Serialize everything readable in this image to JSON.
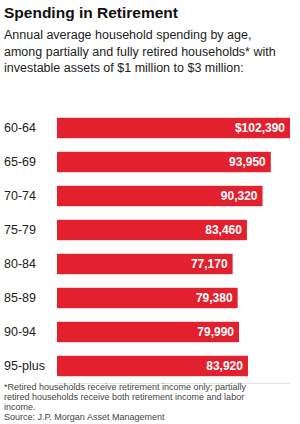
{
  "chart_data": {
    "type": "bar",
    "orientation": "horizontal",
    "title": "Spending in Retirement",
    "subtitle": "Annual average household spending by age, among partially and fully retired households* with investable assets of $1 million to $3 million:",
    "categories": [
      "60-64",
      "65-69",
      "70-74",
      "75-79",
      "80-84",
      "85-89",
      "90-94",
      "95-plus"
    ],
    "values": [
      102390,
      93950,
      90320,
      83460,
      77170,
      79380,
      79990,
      83920
    ],
    "value_labels": [
      "$102,390",
      "93,950",
      "90,320",
      "83,460",
      "77,170",
      "79,380",
      "79,990",
      "83,920"
    ],
    "data_labels": true,
    "color": "#e3202d",
    "xlim": [
      0,
      102390
    ],
    "tick_labels": "y",
    "grid": false,
    "footnote": "*Retired households receive retirement income only; partially retired households receive both retirement income and labor income.",
    "source": "Source: J.P. Morgan Asset Management"
  }
}
